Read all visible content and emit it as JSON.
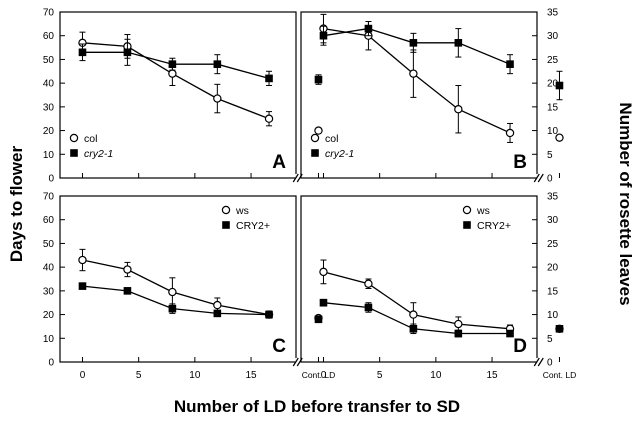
{
  "figure": {
    "ylabel_left": "Days to flower",
    "ylabel_right": "Number of rosette leaves",
    "xlabel": "Number of LD before transfer to SD",
    "xticks": [
      "0",
      "5",
      "10",
      "15"
    ],
    "cont_label": "Cont. LD"
  },
  "chart_data": [
    {
      "type": "line",
      "panel": "A",
      "y_axis": "left",
      "ylim": [
        0,
        70
      ],
      "yticks": [
        "0",
        "10",
        "20",
        "30",
        "40",
        "50",
        "60",
        "70"
      ],
      "xlim": [
        -2,
        19
      ],
      "legend_position": "bottom-left",
      "series": [
        {
          "name": "col",
          "marker": "open-circle",
          "x": [
            0,
            4,
            8,
            12,
            16.6
          ],
          "y": [
            57,
            55.5,
            44,
            33.5,
            25
          ],
          "err": [
            4.5,
            5,
            5,
            6,
            3
          ],
          "cont": 20,
          "cont_err": 0
        },
        {
          "name": "cry2-1",
          "italic": true,
          "marker": "filled-square",
          "x": [
            0,
            4,
            8,
            12,
            16.6
          ],
          "y": [
            53,
            53,
            48,
            48,
            42
          ],
          "err": [
            3.5,
            5.5,
            2.5,
            4,
            3
          ],
          "cont": 41.5,
          "cont_err": 2
        }
      ]
    },
    {
      "type": "line",
      "panel": "B",
      "y_axis": "right",
      "ylim": [
        0,
        35
      ],
      "yticks": [
        "0",
        "5",
        "10",
        "15",
        "20",
        "25",
        "30",
        "35"
      ],
      "xlim": [
        -2,
        19
      ],
      "legend_position": "bottom-left",
      "series": [
        {
          "name": "col",
          "marker": "open-circle",
          "x": [
            0,
            4,
            8,
            12,
            16.6
          ],
          "y": [
            31.5,
            30,
            22,
            14.5,
            9.5
          ],
          "err": [
            3,
            3,
            5,
            5,
            2
          ],
          "cont": 8.5,
          "cont_err": 0
        },
        {
          "name": "cry2-1",
          "italic": true,
          "marker": "filled-square",
          "x": [
            0,
            4,
            8,
            12,
            16.6
          ],
          "y": [
            30,
            31.5,
            28.5,
            28.5,
            24
          ],
          "err": [
            2,
            1.5,
            2,
            3,
            2
          ],
          "cont": 19.5,
          "cont_err": 3
        }
      ]
    },
    {
      "type": "line",
      "panel": "C",
      "y_axis": "left",
      "ylim": [
        0,
        70
      ],
      "yticks": [
        "0",
        "10",
        "20",
        "30",
        "40",
        "50",
        "60",
        "70"
      ],
      "xlim": [
        -2,
        19
      ],
      "legend_position": "top-right",
      "series": [
        {
          "name": "ws",
          "marker": "open-circle",
          "x": [
            0,
            4,
            8,
            12,
            16.6
          ],
          "y": [
            43,
            39,
            29.5,
            24,
            20
          ],
          "err": [
            4.5,
            3,
            6,
            3,
            1.5
          ],
          "cont": 18.5,
          "cont_err": 0
        },
        {
          "name": "CRY2+",
          "marker": "filled-square",
          "x": [
            0,
            4,
            8,
            12,
            16.6
          ],
          "y": [
            32,
            30,
            22.5,
            20.5,
            20
          ],
          "err": [
            1,
            1,
            2,
            1,
            1
          ],
          "cont": 18,
          "cont_err": 1
        }
      ]
    },
    {
      "type": "line",
      "panel": "D",
      "y_axis": "right",
      "ylim": [
        0,
        35
      ],
      "yticks": [
        "0",
        "5",
        "10",
        "15",
        "20",
        "25",
        "30",
        "35"
      ],
      "xlim": [
        -2,
        19
      ],
      "legend_position": "top-right",
      "series": [
        {
          "name": "ws",
          "marker": "open-circle",
          "x": [
            0,
            4,
            8,
            12,
            16.6
          ],
          "y": [
            19,
            16.5,
            10,
            8,
            7
          ],
          "err": [
            2.5,
            1,
            2.5,
            1.5,
            0.8
          ],
          "cont": 7,
          "cont_err": 0
        },
        {
          "name": "CRY2+",
          "marker": "filled-square",
          "x": [
            0,
            4,
            8,
            12,
            16.6
          ],
          "y": [
            12.5,
            11.5,
            7,
            6,
            6
          ],
          "err": [
            0.7,
            1,
            1,
            0.7,
            0.5
          ],
          "cont": 7,
          "cont_err": 0.5
        }
      ]
    }
  ]
}
